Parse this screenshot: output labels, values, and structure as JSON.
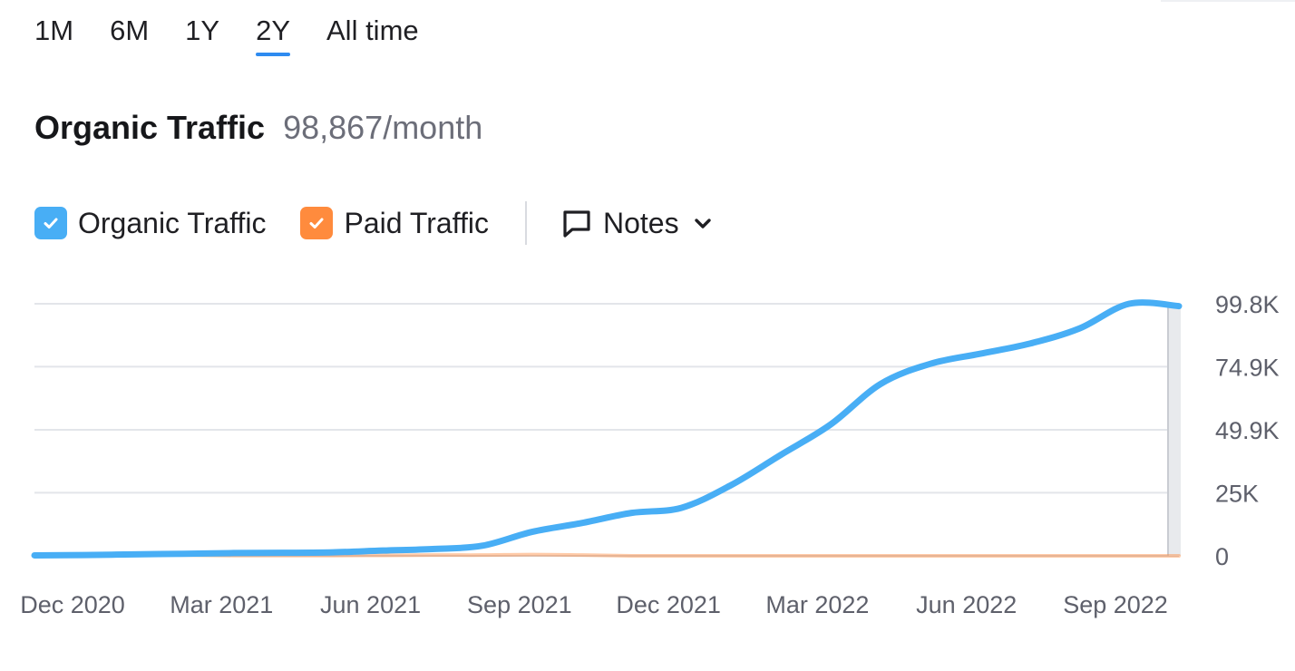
{
  "period_tabs": {
    "items": [
      {
        "label": "1M",
        "active": false
      },
      {
        "label": "6M",
        "active": false
      },
      {
        "label": "1Y",
        "active": false
      },
      {
        "label": "2Y",
        "active": true
      },
      {
        "label": "All time",
        "active": false
      }
    ]
  },
  "headline": {
    "title": "Organic Traffic",
    "value": "98,867/month"
  },
  "legend": {
    "organic_label": "Organic Traffic",
    "paid_label": "Paid Traffic",
    "notes_label": "Notes",
    "organic_checked": true,
    "paid_checked": true,
    "organic_color": "#48aef5",
    "paid_color": "#ff8b3d",
    "checkbox_icon": "check-icon",
    "notes_icon": "comment-icon",
    "dropdown_icon": "chevron-down-icon"
  },
  "chart_data": {
    "type": "line",
    "x_tick_labels": [
      "Dec 2020",
      "Mar 2021",
      "Jun 2021",
      "Sep 2021",
      "Dec 2021",
      "Mar 2022",
      "Jun 2022",
      "Sep 2022"
    ],
    "y_tick_labels": [
      "99.8K",
      "74.9K",
      "49.9K",
      "25K",
      "0"
    ],
    "y_ticks": [
      99800,
      74900,
      49900,
      25000,
      0
    ],
    "ylim": [
      0,
      99800
    ],
    "y_axis_side": "right",
    "grid": true,
    "x": [
      "Dec 2020",
      "Jan 2021",
      "Feb 2021",
      "Mar 2021",
      "Apr 2021",
      "May 2021",
      "Jun 2021",
      "Jul 2021",
      "Aug 2021",
      "Sep 2021",
      "Oct 2021",
      "Nov 2021",
      "Dec 2021",
      "Jan 2022",
      "Feb 2022",
      "Mar 2022",
      "Apr 2022",
      "May 2022",
      "Jun 2022",
      "Jul 2022",
      "Aug 2022",
      "Sep 2022",
      "Oct 2022",
      "Nov 2022"
    ],
    "series": [
      {
        "name": "Organic Traffic",
        "color": "#48aef5",
        "values": [
          200,
          300,
          600,
          800,
          1100,
          1200,
          1400,
          2100,
          2700,
          4000,
          9500,
          13000,
          17000,
          19000,
          28000,
          40000,
          52000,
          68000,
          76000,
          80000,
          84000,
          90000,
          100000,
          98867
        ]
      },
      {
        "name": "Paid Traffic",
        "color": "#ff8b3d",
        "values": [
          0,
          300,
          600,
          300,
          100,
          100,
          100,
          200,
          300,
          300,
          500,
          300,
          0,
          0,
          0,
          0,
          0,
          0,
          0,
          0,
          0,
          0,
          0,
          0
        ]
      }
    ]
  }
}
